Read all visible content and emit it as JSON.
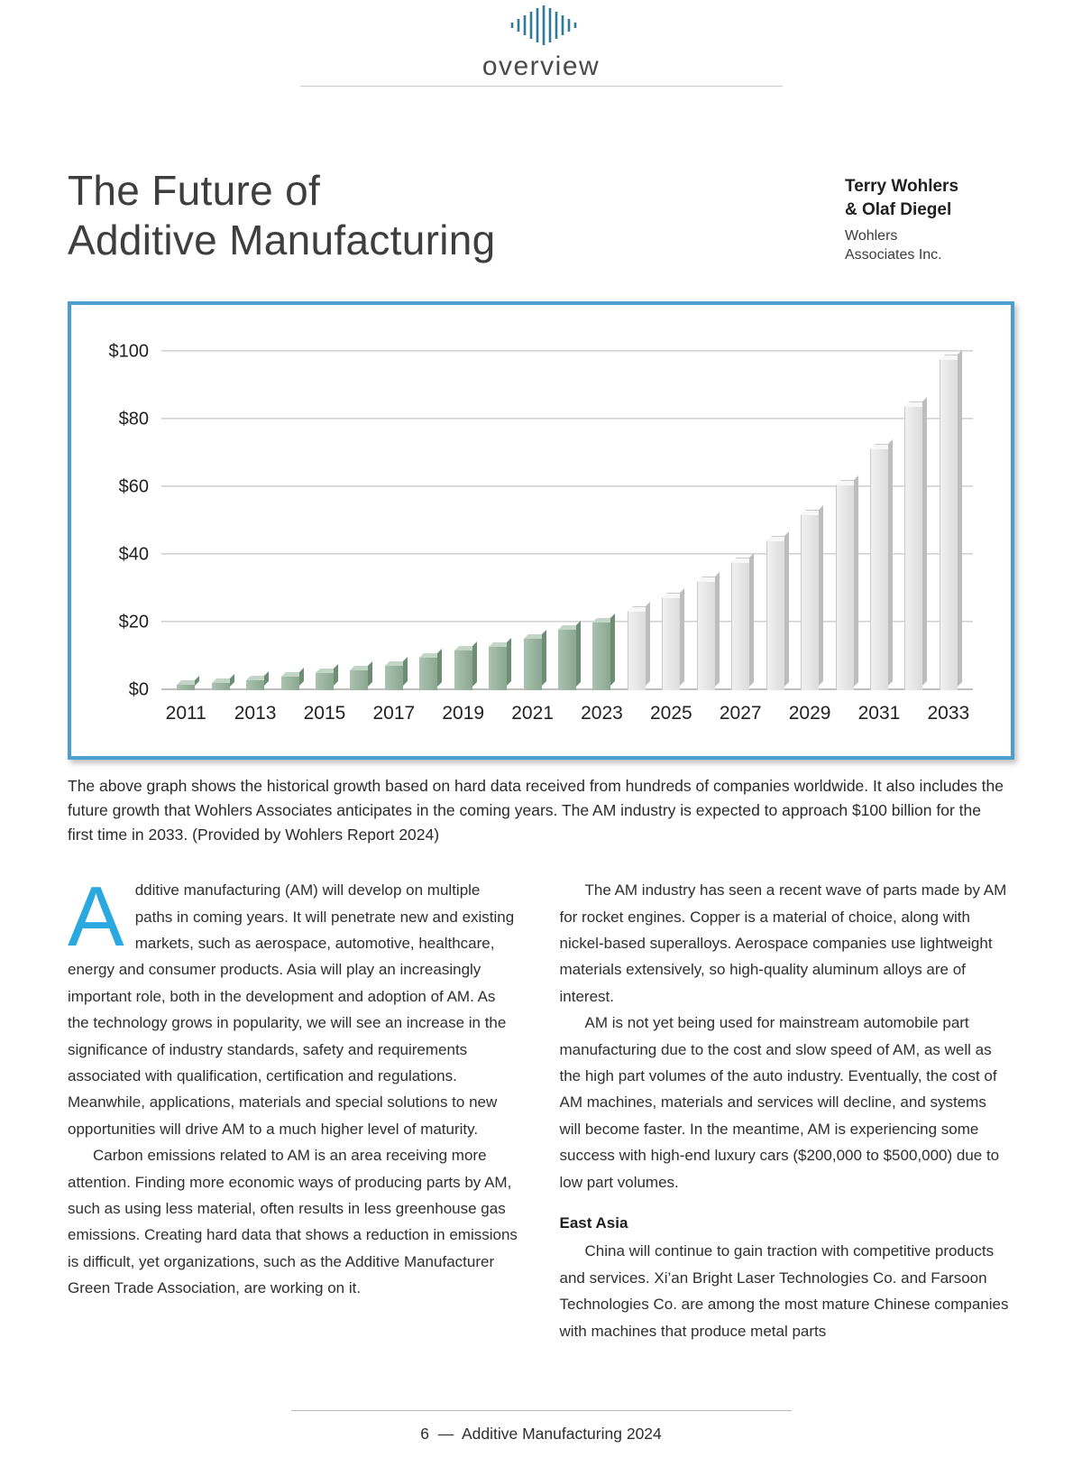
{
  "header": {
    "section_label": "overview"
  },
  "title": {
    "line1": "The Future of",
    "line2": "Additive Manufacturing"
  },
  "authors": {
    "name_line1": "Terry Wohlers",
    "name_line2": "& Olaf Diegel",
    "affiliation_line1": "Wohlers",
    "affiliation_line2": "Associates Inc."
  },
  "chart_data": {
    "type": "bar",
    "title": "",
    "xlabel": "",
    "ylabel": "",
    "ylim": [
      0,
      100
    ],
    "ytick_interval": 20,
    "ytick_labels": [
      "$0",
      "$20",
      "$40",
      "$60",
      "$80",
      "$100"
    ],
    "xtick_labels": [
      "2011",
      "2013",
      "2015",
      "2017",
      "2019",
      "2021",
      "2023",
      "2025",
      "2027",
      "2029",
      "2031",
      "2033"
    ],
    "grid": true,
    "colors": {
      "historical": "#94af9b",
      "forecast": "#e4e4e4",
      "frame": "#4aa0cc"
    },
    "bars": [
      {
        "year": 2011,
        "value": 1.7,
        "phase": "historical"
      },
      {
        "year": 2012,
        "value": 2.3,
        "phase": "historical"
      },
      {
        "year": 2013,
        "value": 3.0,
        "phase": "historical"
      },
      {
        "year": 2014,
        "value": 4.1,
        "phase": "historical"
      },
      {
        "year": 2015,
        "value": 5.2,
        "phase": "historical"
      },
      {
        "year": 2016,
        "value": 6.1,
        "phase": "historical"
      },
      {
        "year": 2017,
        "value": 7.3,
        "phase": "historical"
      },
      {
        "year": 2018,
        "value": 9.8,
        "phase": "historical"
      },
      {
        "year": 2019,
        "value": 11.9,
        "phase": "historical"
      },
      {
        "year": 2020,
        "value": 12.8,
        "phase": "historical"
      },
      {
        "year": 2021,
        "value": 15.2,
        "phase": "historical"
      },
      {
        "year": 2022,
        "value": 18.0,
        "phase": "historical"
      },
      {
        "year": 2023,
        "value": 20.0,
        "phase": "historical"
      },
      {
        "year": 2024,
        "value": 23.5,
        "phase": "forecast"
      },
      {
        "year": 2025,
        "value": 27.5,
        "phase": "forecast"
      },
      {
        "year": 2026,
        "value": 32.5,
        "phase": "forecast"
      },
      {
        "year": 2027,
        "value": 38.0,
        "phase": "forecast"
      },
      {
        "year": 2028,
        "value": 44.5,
        "phase": "forecast"
      },
      {
        "year": 2029,
        "value": 52.0,
        "phase": "forecast"
      },
      {
        "year": 2030,
        "value": 61.0,
        "phase": "forecast"
      },
      {
        "year": 2031,
        "value": 71.5,
        "phase": "forecast"
      },
      {
        "year": 2032,
        "value": 84.0,
        "phase": "forecast"
      },
      {
        "year": 2033,
        "value": 98.0,
        "phase": "forecast"
      }
    ]
  },
  "caption": "The above graph shows the historical growth based on hard data received from hundreds of companies worldwide. It also includes the future growth that Wohlers Associates anticipates in the coming years. The AM industry is expected to approach $100 billion for the first time in 2033. (Provided by Wohlers Report 2024)",
  "article": {
    "dropcap": "A",
    "left_paragraphs": [
      "dditive manufacturing (AM) will develop on multiple paths in coming years. It will penetrate new and existing markets, such as aerospace, automotive, healthcare, energy and consumer products. Asia will play an increasingly important role, both in the development and adoption of AM. As the technology grows in popularity, we will see an increase in the significance of industry standards, safety and requirements associated with qualification, certification and regulations. Meanwhile, applications, materials and special solutions to new opportunities will drive AM to a much higher level of maturity.",
      "Carbon emissions related to AM is an area receiving more attention. Finding more economic ways of producing parts by AM, such as using less material, often results in less greenhouse gas emissions. Creating hard data that shows a reduction in emissions is difficult, yet organizations, such as the Additive Manufacturer Green Trade Association, are working on it."
    ],
    "right_paragraphs": [
      "The AM industry has seen a recent wave of parts made by AM for rocket engines. Copper is a material of choice, along with nickel-based superalloys. Aerospace companies use lightweight materials extensively, so high-quality aluminum alloys are of interest.",
      "AM is not yet being used for mainstream automobile part manufacturing due to the cost and slow speed of AM, as well as the high part volumes of the auto industry. Eventually, the cost of AM machines, materials and services will decline, and systems will become faster. In the meantime, AM is experiencing some success with high-end luxury cars ($200,000 to $500,000) due to low part volumes."
    ],
    "east_asia": {
      "heading": "East Asia",
      "paragraph": "China will continue to gain traction with competitive products and services. Xi’an Bright Laser Technologies Co. and Farsoon Technologies Co. are among the most mature Chinese companies with machines that produce metal parts"
    }
  },
  "footer": {
    "page_number": "6",
    "separator": "—",
    "publication": "Additive Manufacturing 2024"
  }
}
